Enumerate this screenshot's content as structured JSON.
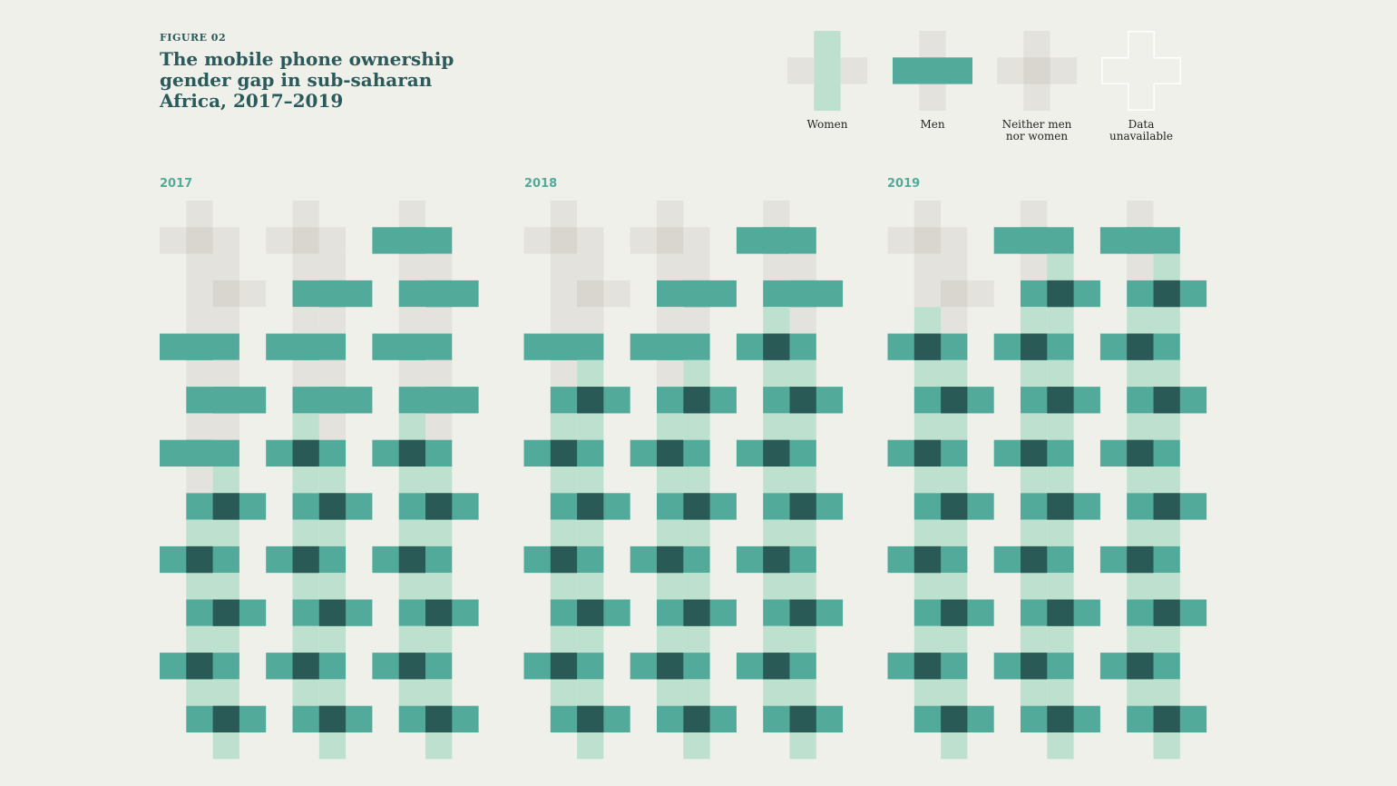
{
  "figure_label": "FIGURE 02",
  "title": "The mobile phone ownership gender gap in sub-saharan Africa, 2017–2019",
  "legend": [
    {
      "key": "women",
      "label": "Women"
    },
    {
      "key": "men",
      "label": "Men"
    },
    {
      "key": "neither",
      "label": "Neither men\nnor women"
    },
    {
      "key": "na",
      "label": "Data\nunavailable"
    }
  ],
  "colors": {
    "background": "#f0f0eb",
    "neither": "#e4e2dc",
    "neither_center": "#d8d6cf",
    "women": "#bde0cf",
    "men": "#52aa9a",
    "both": "#2a5a55",
    "na_outline": "#ffffff"
  },
  "chart_data": {
    "type": "heatmap",
    "encoding": "Each plus-sign glyph is one country: vertical bar lit = women's ownership gap, horizontal bar lit = men's; dark center = both",
    "panels": [
      {
        "year": "2017",
        "countries": [
          {
            "row": 0,
            "col": 0,
            "state": "neither"
          },
          {
            "row": 0,
            "col": 1,
            "state": "neither"
          },
          {
            "row": 0,
            "col": 2,
            "state": "men"
          },
          {
            "row": 1,
            "col": 0,
            "state": "neither"
          },
          {
            "row": 1,
            "col": 1,
            "state": "men"
          },
          {
            "row": 1,
            "col": 2,
            "state": "men"
          },
          {
            "row": 2,
            "col": 0,
            "state": "men"
          },
          {
            "row": 2,
            "col": 1,
            "state": "men"
          },
          {
            "row": 2,
            "col": 2,
            "state": "men"
          },
          {
            "row": 3,
            "col": 0,
            "state": "men"
          },
          {
            "row": 3,
            "col": 1,
            "state": "men"
          },
          {
            "row": 3,
            "col": 2,
            "state": "men"
          },
          {
            "row": 4,
            "col": 0,
            "state": "men"
          },
          {
            "row": 4,
            "col": 1,
            "state": "both"
          },
          {
            "row": 4,
            "col": 2,
            "state": "both"
          },
          {
            "row": 5,
            "col": 0,
            "state": "both"
          },
          {
            "row": 5,
            "col": 1,
            "state": "both"
          },
          {
            "row": 5,
            "col": 2,
            "state": "both"
          },
          {
            "row": 6,
            "col": 0,
            "state": "both"
          },
          {
            "row": 6,
            "col": 1,
            "state": "both"
          },
          {
            "row": 6,
            "col": 2,
            "state": "both"
          },
          {
            "row": 7,
            "col": 0,
            "state": "both"
          },
          {
            "row": 7,
            "col": 1,
            "state": "both"
          },
          {
            "row": 7,
            "col": 2,
            "state": "both"
          },
          {
            "row": 8,
            "col": 0,
            "state": "both"
          },
          {
            "row": 8,
            "col": 1,
            "state": "both"
          },
          {
            "row": 8,
            "col": 2,
            "state": "both"
          },
          {
            "row": 9,
            "col": 0,
            "state": "both"
          },
          {
            "row": 9,
            "col": 1,
            "state": "both"
          },
          {
            "row": 9,
            "col": 2,
            "state": "both"
          }
        ]
      },
      {
        "year": "2018",
        "countries": [
          {
            "row": 0,
            "col": 0,
            "state": "neither"
          },
          {
            "row": 0,
            "col": 1,
            "state": "neither"
          },
          {
            "row": 0,
            "col": 2,
            "state": "men"
          },
          {
            "row": 1,
            "col": 0,
            "state": "neither"
          },
          {
            "row": 1,
            "col": 1,
            "state": "men"
          },
          {
            "row": 1,
            "col": 2,
            "state": "men"
          },
          {
            "row": 2,
            "col": 0,
            "state": "men"
          },
          {
            "row": 2,
            "col": 1,
            "state": "men"
          },
          {
            "row": 2,
            "col": 2,
            "state": "both"
          },
          {
            "row": 3,
            "col": 0,
            "state": "both"
          },
          {
            "row": 3,
            "col": 1,
            "state": "both"
          },
          {
            "row": 3,
            "col": 2,
            "state": "both"
          },
          {
            "row": 4,
            "col": 0,
            "state": "both"
          },
          {
            "row": 4,
            "col": 1,
            "state": "both"
          },
          {
            "row": 4,
            "col": 2,
            "state": "both"
          },
          {
            "row": 5,
            "col": 0,
            "state": "both"
          },
          {
            "row": 5,
            "col": 1,
            "state": "both"
          },
          {
            "row": 5,
            "col": 2,
            "state": "both"
          },
          {
            "row": 6,
            "col": 0,
            "state": "both"
          },
          {
            "row": 6,
            "col": 1,
            "state": "both"
          },
          {
            "row": 6,
            "col": 2,
            "state": "both"
          },
          {
            "row": 7,
            "col": 0,
            "state": "both"
          },
          {
            "row": 7,
            "col": 1,
            "state": "both"
          },
          {
            "row": 7,
            "col": 2,
            "state": "both"
          },
          {
            "row": 8,
            "col": 0,
            "state": "both"
          },
          {
            "row": 8,
            "col": 1,
            "state": "both"
          },
          {
            "row": 8,
            "col": 2,
            "state": "both"
          },
          {
            "row": 9,
            "col": 0,
            "state": "both"
          },
          {
            "row": 9,
            "col": 1,
            "state": "both"
          },
          {
            "row": 9,
            "col": 2,
            "state": "both"
          }
        ]
      },
      {
        "year": "2019",
        "countries": [
          {
            "row": 0,
            "col": 0,
            "state": "neither"
          },
          {
            "row": 0,
            "col": 1,
            "state": "men"
          },
          {
            "row": 0,
            "col": 2,
            "state": "men"
          },
          {
            "row": 1,
            "col": 0,
            "state": "neither"
          },
          {
            "row": 1,
            "col": 1,
            "state": "both"
          },
          {
            "row": 1,
            "col": 2,
            "state": "both"
          },
          {
            "row": 2,
            "col": 0,
            "state": "both"
          },
          {
            "row": 2,
            "col": 1,
            "state": "both"
          },
          {
            "row": 2,
            "col": 2,
            "state": "both"
          },
          {
            "row": 3,
            "col": 0,
            "state": "both"
          },
          {
            "row": 3,
            "col": 1,
            "state": "both"
          },
          {
            "row": 3,
            "col": 2,
            "state": "both"
          },
          {
            "row": 4,
            "col": 0,
            "state": "both"
          },
          {
            "row": 4,
            "col": 1,
            "state": "both"
          },
          {
            "row": 4,
            "col": 2,
            "state": "both"
          },
          {
            "row": 5,
            "col": 0,
            "state": "both"
          },
          {
            "row": 5,
            "col": 1,
            "state": "both"
          },
          {
            "row": 5,
            "col": 2,
            "state": "both"
          },
          {
            "row": 6,
            "col": 0,
            "state": "both"
          },
          {
            "row": 6,
            "col": 1,
            "state": "both"
          },
          {
            "row": 6,
            "col": 2,
            "state": "both"
          },
          {
            "row": 7,
            "col": 0,
            "state": "both"
          },
          {
            "row": 7,
            "col": 1,
            "state": "both"
          },
          {
            "row": 7,
            "col": 2,
            "state": "both"
          },
          {
            "row": 8,
            "col": 0,
            "state": "both"
          },
          {
            "row": 8,
            "col": 1,
            "state": "both"
          },
          {
            "row": 8,
            "col": 2,
            "state": "both"
          },
          {
            "row": 9,
            "col": 0,
            "state": "both"
          },
          {
            "row": 9,
            "col": 1,
            "state": "both"
          },
          {
            "row": 9,
            "col": 2,
            "state": "both"
          }
        ]
      }
    ]
  }
}
